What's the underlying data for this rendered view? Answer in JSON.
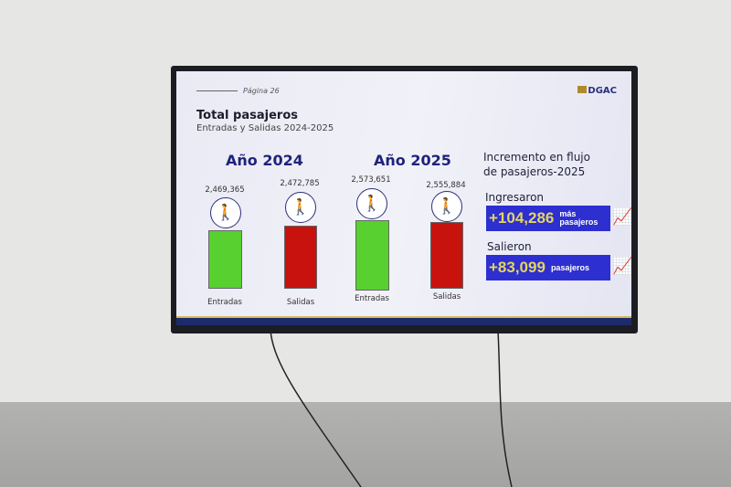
{
  "slide": {
    "page": "Página 26",
    "logo": "DGAC",
    "title": "Total pasajeros",
    "subtitle": "Entradas y Salidas 2024-2025",
    "years": [
      {
        "label": "Año 2024",
        "items": [
          {
            "value": "2,469,365",
            "label": "Entradas",
            "color": "#58d030",
            "icon": "passenger-arrival-icon"
          },
          {
            "value": "2,472,785",
            "label": "Salidas",
            "color": "#c8120e",
            "icon": "passenger-departure-icon"
          }
        ]
      },
      {
        "label": "Año 2025",
        "items": [
          {
            "value": "2,573,651",
            "label": "Entradas",
            "color": "#58d030",
            "icon": "passenger-arrival-icon"
          },
          {
            "value": "2,555,884",
            "label": "Salidas",
            "color": "#c8120e",
            "icon": "passenger-departure-icon"
          }
        ]
      }
    ],
    "increase": {
      "title_line1": "Incremento en flujo",
      "title_line2": "de pasajeros-2025",
      "in": {
        "heading": "Ingresaron",
        "value": "+104,286",
        "unit1": "más",
        "unit2": "pasajeros"
      },
      "out": {
        "heading": "Salieron",
        "value": "+83,099",
        "unit": "pasajeros"
      }
    }
  }
}
